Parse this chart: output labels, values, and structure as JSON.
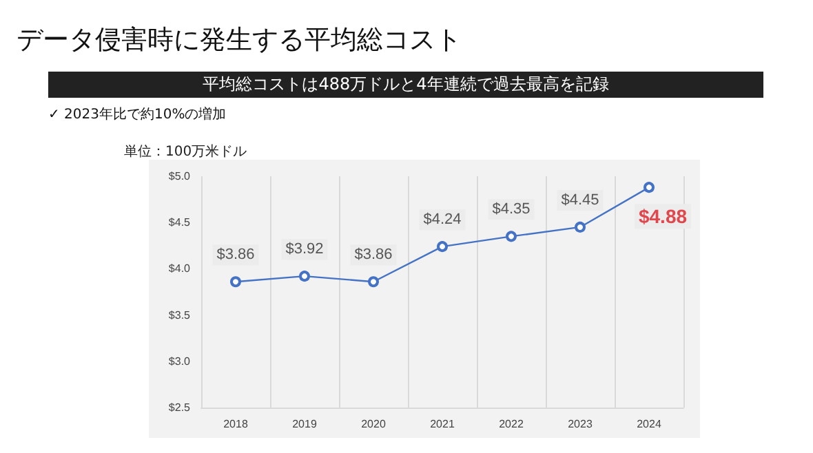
{
  "chart_data": {
    "type": "line",
    "title": "データ侵害時に発生する平均総コスト",
    "subtitle": "平均総コストは488万ドルと4年連続で過去最高を記録",
    "annotations": [
      "✓ 2023年比で約10%の増加"
    ],
    "ylabel": "単位：100万米ドル",
    "categories": [
      "2018",
      "2019",
      "2020",
      "2021",
      "2022",
      "2023",
      "2024"
    ],
    "series": [
      {
        "color": "#4472c4",
        "values": [
          3.86,
          3.92,
          3.86,
          4.24,
          4.35,
          4.45,
          4.88
        ],
        "value_labels": [
          "$3.86",
          "$3.92",
          "$3.86",
          "$4.24",
          "$4.35",
          "$4.45",
          "$4.88"
        ]
      }
    ],
    "ylim": [
      2.5,
      5.0
    ],
    "yticks": [
      {
        "value": 2.5,
        "label": "$2.5"
      },
      {
        "value": 3.0,
        "label": "$3.0"
      },
      {
        "value": 3.5,
        "label": "$3.5"
      },
      {
        "value": 4.0,
        "label": "$4.0"
      },
      {
        "value": 4.5,
        "label": "$4.5"
      },
      {
        "value": 5.0,
        "label": "$5.0"
      }
    ],
    "grid": "x",
    "marker": "circle",
    "line_style": "solid"
  }
}
